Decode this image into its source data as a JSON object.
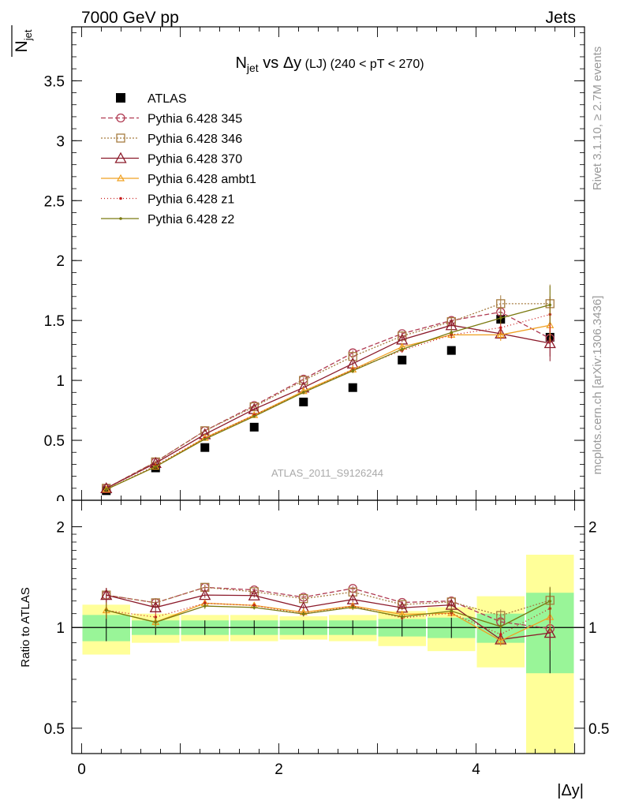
{
  "header": {
    "energy": "7000 GeV pp",
    "topic": "Jets",
    "title_main": "N",
    "title_sub": "jet",
    "title_vs": " vs Δy",
    "title_tag": " (LJ) ",
    "title_cut": "(240 < pT < 270)",
    "ylabel_main": "N",
    "ylabel_sub": "jet",
    "ratio_ylabel": "Ratio to ATLAS",
    "xlabel": "|Δy|",
    "watermark": "ATLAS_2011_S9126244",
    "side_rivet": "Rivet 3.1.10, ≥ 2.7M events",
    "side_mcplots": "mcplots.cern.ch [arXiv:1306.3436]"
  },
  "chart_data": {
    "type": "line",
    "x": [
      0.25,
      0.75,
      1.25,
      1.75,
      2.25,
      2.75,
      3.25,
      3.75,
      4.25,
      4.75
    ],
    "xbins": [
      [
        0,
        0.5
      ],
      [
        0.5,
        1.0
      ],
      [
        1.0,
        1.5
      ],
      [
        1.5,
        2.0
      ],
      [
        2.0,
        2.5
      ],
      [
        2.5,
        3.0
      ],
      [
        3.0,
        3.5
      ],
      [
        3.5,
        4.0
      ],
      [
        4.0,
        4.5
      ],
      [
        4.5,
        5.0
      ]
    ],
    "xlim": [
      -0.1,
      5.1
    ],
    "ylim": [
      0,
      3.95
    ],
    "ratio_ylim": [
      0.42,
      2.4
    ],
    "main_yticks": [
      {
        "v": 0.5,
        "t": "0.5"
      },
      {
        "v": 1,
        "t": "1"
      },
      {
        "v": 1.5,
        "t": "1.5"
      },
      {
        "v": 2,
        "t": "2"
      },
      {
        "v": 2.5,
        "t": "2.5"
      },
      {
        "v": 3,
        "t": "3"
      },
      {
        "v": 3.5,
        "t": "3.5"
      }
    ],
    "ratio_yticks": [
      {
        "v": 0.5,
        "t": "0.5"
      },
      {
        "v": 1,
        "t": "1"
      },
      {
        "v": 2,
        "t": "2"
      }
    ],
    "xticks": [
      {
        "v": 0,
        "t": "0"
      },
      {
        "v": 2,
        "t": "2"
      },
      {
        "v": 4,
        "t": "4"
      }
    ],
    "data": {
      "name": "ATLAS",
      "values": [
        0.08,
        0.27,
        0.44,
        0.61,
        0.82,
        0.94,
        1.17,
        1.25,
        1.51,
        1.36
      ]
    },
    "band_inner": [
      0.09,
      0.05,
      0.05,
      0.05,
      0.05,
      0.05,
      0.06,
      0.07,
      0.1,
      0.27
    ],
    "band_outer": [
      0.17,
      0.1,
      0.09,
      0.09,
      0.08,
      0.09,
      0.12,
      0.15,
      0.24,
      0.65
    ],
    "series": [
      {
        "name": "Pythia 6.428 345",
        "color": "#b03a52",
        "dash": "6,3",
        "marker": "circle",
        "values": [
          0.1,
          0.32,
          0.58,
          0.79,
          1.01,
          1.23,
          1.39,
          1.5,
          1.57,
          1.35
        ],
        "errors": [
          0.005,
          0.01,
          0.01,
          0.01,
          0.015,
          0.02,
          0.02,
          0.03,
          0.06,
          0.15
        ]
      },
      {
        "name": "Pythia 6.428 346",
        "color": "#a67c40",
        "dash": "2,2",
        "marker": "square",
        "values": [
          0.1,
          0.32,
          0.58,
          0.78,
          1.0,
          1.2,
          1.37,
          1.49,
          1.64,
          1.64
        ],
        "errors": [
          0.005,
          0.01,
          0.01,
          0.01,
          0.015,
          0.02,
          0.02,
          0.03,
          0.07,
          0.16
        ]
      },
      {
        "name": "Pythia 6.428 370",
        "color": "#8b1a2a",
        "dash": "",
        "marker": "triangle",
        "values": [
          0.1,
          0.31,
          0.55,
          0.76,
          0.94,
          1.14,
          1.34,
          1.46,
          1.39,
          1.31
        ],
        "errors": [
          0.005,
          0.01,
          0.01,
          0.01,
          0.015,
          0.02,
          0.02,
          0.03,
          0.05,
          0.15
        ]
      },
      {
        "name": "Pythia 6.428 ambt1",
        "color": "#f0a020",
        "dash": "",
        "marker": "triangle-small",
        "values": [
          0.09,
          0.28,
          0.52,
          0.71,
          0.91,
          1.09,
          1.28,
          1.38,
          1.38,
          1.46
        ],
        "errors": [
          0.005,
          0.01,
          0.01,
          0.01,
          0.015,
          0.02,
          0.02,
          0.03,
          0.05,
          0.14
        ]
      },
      {
        "name": "Pythia 6.428 z1",
        "color": "#c81e1e",
        "dash": "1,3",
        "marker": "dot",
        "values": [
          0.09,
          0.29,
          0.52,
          0.71,
          0.9,
          1.09,
          1.25,
          1.38,
          1.44,
          1.55
        ],
        "errors": [
          0.005,
          0.01,
          0.01,
          0.01,
          0.015,
          0.02,
          0.02,
          0.03,
          0.05,
          0.15
        ]
      },
      {
        "name": "Pythia 6.428 z2",
        "color": "#7a7a10",
        "dash": "",
        "marker": "dot",
        "values": [
          0.09,
          0.28,
          0.51,
          0.7,
          0.9,
          1.08,
          1.26,
          1.4,
          1.52,
          1.63
        ],
        "errors": [
          0.005,
          0.01,
          0.01,
          0.01,
          0.015,
          0.02,
          0.02,
          0.03,
          0.05,
          0.16
        ]
      }
    ]
  }
}
